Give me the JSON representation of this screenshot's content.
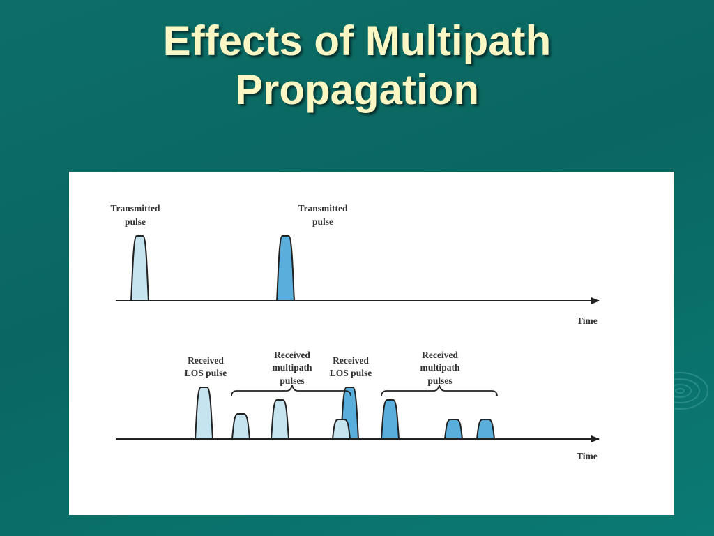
{
  "slide": {
    "title_line1": "Effects of Multipath",
    "title_line2": "Propagation"
  },
  "diagram": {
    "top_axis_label": "Time",
    "bottom_axis_label": "Time",
    "transmitted_1": [
      "Transmitted",
      "pulse"
    ],
    "transmitted_2": [
      "Transmitted",
      "pulse"
    ],
    "received_los_1": [
      "Received",
      "LOS pulse"
    ],
    "received_multipath_1": [
      "Received",
      "multipath",
      "pulses"
    ],
    "received_los_2": [
      "Received",
      "LOS pulse"
    ],
    "received_multipath_2": [
      "Received",
      "multipath",
      "pulses"
    ]
  },
  "colors": {
    "background": "#0a6660",
    "title": "#fbf7c4",
    "pulse_light": "#c6e3f0",
    "pulse_dark": "#5aaedb",
    "outline": "#222222"
  }
}
